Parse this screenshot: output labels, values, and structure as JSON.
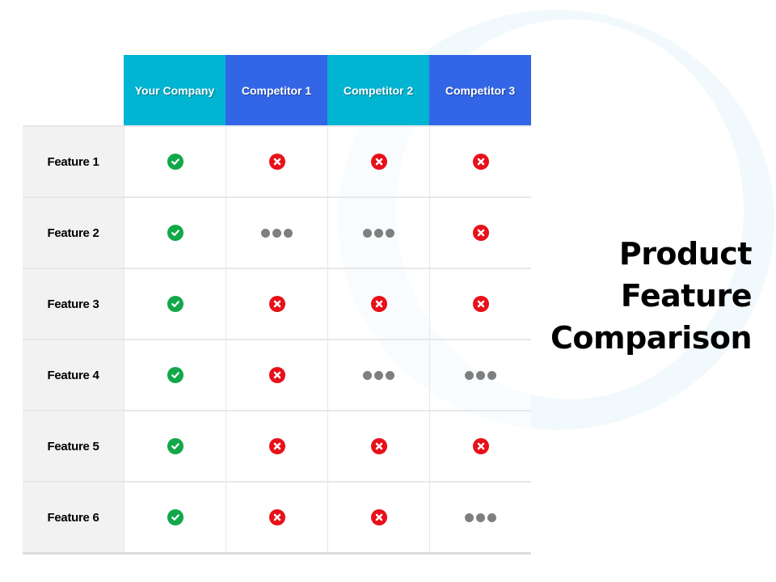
{
  "title": {
    "lines": [
      "Product",
      "Feature",
      "Comparison"
    ]
  },
  "colors": {
    "teal_header": "#00b4d2",
    "blue_header": "#3366e6",
    "yes": "#12a84a",
    "no": "#e8101a",
    "partial": "#7f7f7f"
  },
  "table": {
    "columns": [
      "Your Company",
      "Competitor 1",
      "Competitor 2",
      "Competitor 3"
    ],
    "rows": [
      {
        "feature": "Feature 1",
        "values": [
          "yes",
          "no",
          "no",
          "no"
        ]
      },
      {
        "feature": "Feature 2",
        "values": [
          "yes",
          "partial",
          "partial",
          "no"
        ]
      },
      {
        "feature": "Feature 3",
        "values": [
          "yes",
          "no",
          "no",
          "no"
        ]
      },
      {
        "feature": "Feature 4",
        "values": [
          "yes",
          "no",
          "partial",
          "partial"
        ]
      },
      {
        "feature": "Feature 5",
        "values": [
          "yes",
          "no",
          "no",
          "no"
        ]
      },
      {
        "feature": "Feature 6",
        "values": [
          "yes",
          "no",
          "no",
          "partial"
        ]
      }
    ]
  },
  "legend": {
    "yes": "check-circle-icon",
    "no": "x-circle-icon",
    "partial": "ellipsis-icon"
  }
}
